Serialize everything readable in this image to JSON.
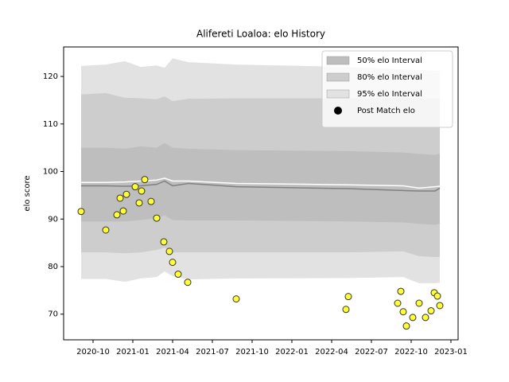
{
  "chart_data": {
    "type": "band-scatter",
    "title": "Alifereti Loaloa: elo History",
    "ylabel": "elo score",
    "xlim": [
      2020.565,
      2023.045
    ],
    "xticks": [
      {
        "value": 2020.75,
        "label": "2020-10"
      },
      {
        "value": 2021.0,
        "label": "2021-01"
      },
      {
        "value": 2021.25,
        "label": "2021-04"
      },
      {
        "value": 2021.5,
        "label": "2021-07"
      },
      {
        "value": 2021.75,
        "label": "2021-10"
      },
      {
        "value": 2022.0,
        "label": "2022-01"
      },
      {
        "value": 2022.25,
        "label": "2022-04"
      },
      {
        "value": 2022.5,
        "label": "2022-07"
      },
      {
        "value": 2022.75,
        "label": "2022-10"
      },
      {
        "value": 2023.0,
        "label": "2023-01"
      }
    ],
    "ylim": [
      64.6,
      126.2
    ],
    "yticks": [
      70,
      80,
      90,
      100,
      110,
      120
    ],
    "legend": "upper right",
    "band_x": [
      2020.675,
      2020.83,
      2020.95,
      2021.05,
      2021.15,
      2021.2,
      2021.25,
      2021.35,
      2021.65,
      2022.35,
      2022.7,
      2022.8,
      2022.9,
      2022.93
    ],
    "bands": [
      {
        "name": "95% elo Interval",
        "color": "#e2e2e2",
        "upper": [
          122.2,
          122.5,
          123.2,
          122.0,
          122.3,
          121.8,
          123.8,
          123.0,
          122.5,
          122.0,
          121.5,
          121.3,
          121.2,
          121.2
        ],
        "lower": [
          77.4,
          77.4,
          76.8,
          77.5,
          77.8,
          79.0,
          78.0,
          77.3,
          77.5,
          77.6,
          77.8,
          76.5,
          76.5,
          76.6
        ]
      },
      {
        "name": "80% elo Interval",
        "color": "#cdcdcd",
        "upper": [
          116.2,
          116.5,
          115.5,
          115.4,
          115.2,
          115.8,
          114.8,
          115.3,
          115.4,
          115.4,
          115.4,
          115.3,
          115.3,
          115.3
        ],
        "lower": [
          83.0,
          83.0,
          82.8,
          83.0,
          83.5,
          84.0,
          83.0,
          83.0,
          83.0,
          83.0,
          83.2,
          82.2,
          82.0,
          82.0
        ]
      },
      {
        "name": "50% elo Interval",
        "color": "#bebebe",
        "upper": [
          105.0,
          105.0,
          104.8,
          105.3,
          105.0,
          106.0,
          105.0,
          104.8,
          104.5,
          104.3,
          104.0,
          103.7,
          103.5,
          103.8
        ],
        "lower": [
          89.5,
          89.5,
          89.5,
          89.8,
          90.2,
          90.8,
          89.8,
          89.7,
          89.7,
          89.5,
          89.3,
          89.0,
          88.8,
          89.0
        ]
      }
    ],
    "lines": [
      {
        "color": "#808080",
        "values": [
          97.0,
          97.0,
          96.9,
          97.0,
          97.3,
          98.0,
          97.0,
          97.5,
          96.8,
          96.4,
          96.0,
          95.9,
          95.9,
          96.5
        ]
      },
      {
        "color": "#ffffff",
        "values": [
          97.7,
          97.7,
          97.8,
          98.0,
          98.2,
          98.6,
          98.0,
          98.0,
          97.5,
          97.2,
          97.0,
          96.5,
          96.8,
          96.9
        ]
      }
    ],
    "series": [
      {
        "name": "Post Match elo",
        "color": "#ffff33",
        "x": [
          2020.675,
          2020.83,
          2020.9,
          2020.92,
          2020.94,
          2020.96,
          2021.015,
          2021.04,
          2021.055,
          2021.075,
          2021.115,
          2021.15,
          2021.195,
          2021.23,
          2021.25,
          2021.285,
          2021.345,
          2021.65,
          2022.34,
          2022.355,
          2022.665,
          2022.685,
          2022.7,
          2022.72,
          2022.76,
          2022.8,
          2022.84,
          2022.875,
          2022.895,
          2022.915,
          2022.93
        ],
        "values": [
          91.6,
          87.7,
          90.9,
          94.4,
          91.7,
          95.2,
          96.8,
          93.4,
          95.9,
          98.3,
          93.7,
          90.2,
          85.2,
          83.2,
          80.9,
          78.4,
          76.7,
          73.2,
          71.0,
          73.7,
          72.3,
          74.8,
          70.5,
          67.5,
          69.3,
          72.3,
          69.3,
          70.7,
          74.5,
          73.8,
          71.8
        ]
      }
    ]
  }
}
